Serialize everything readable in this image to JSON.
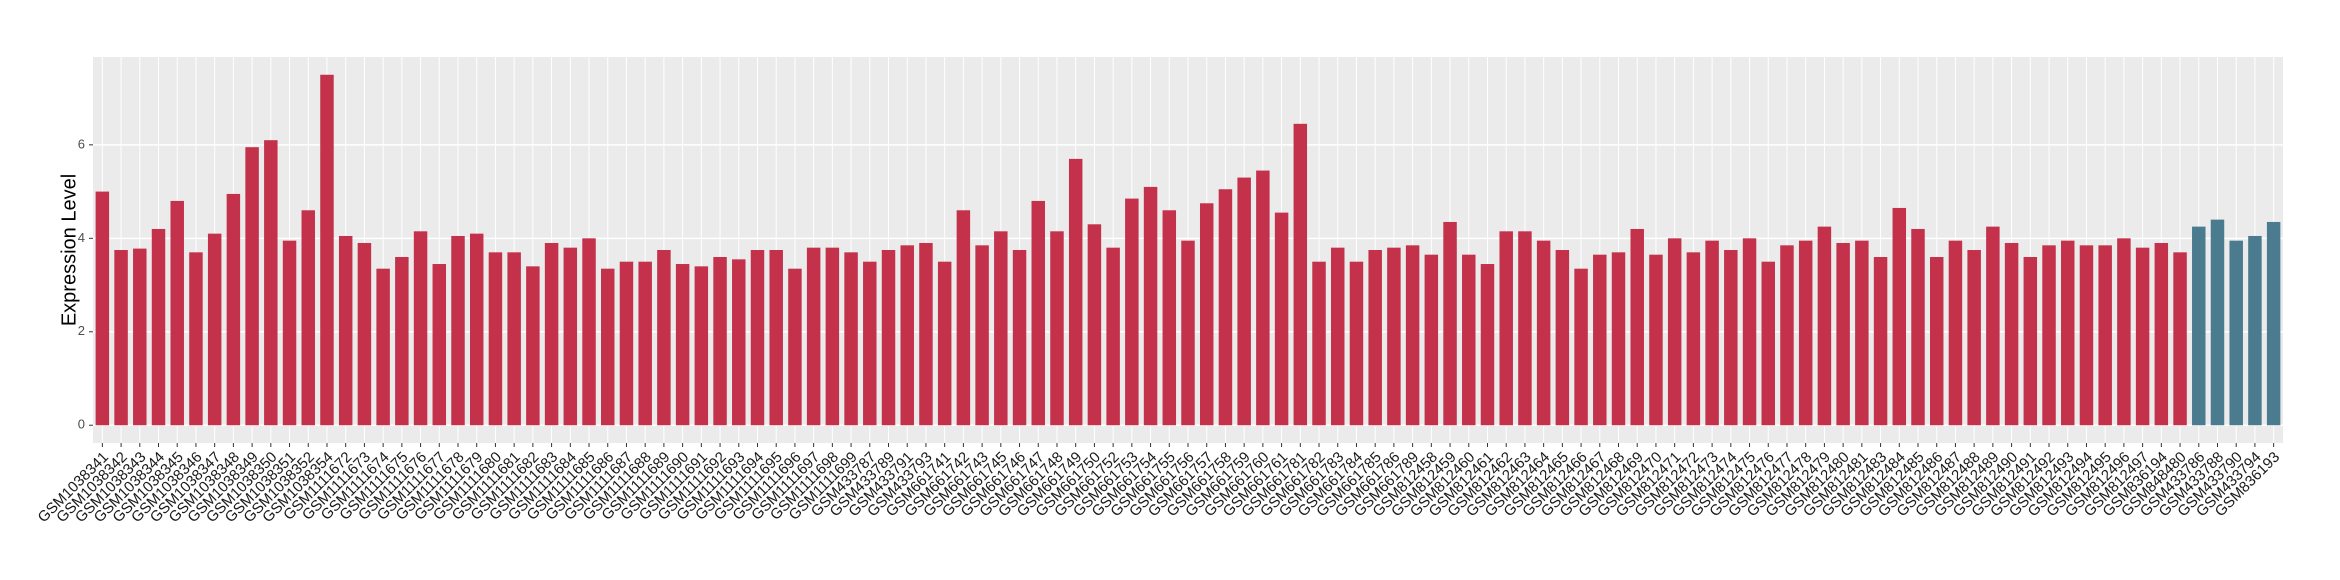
{
  "chart_data": {
    "type": "bar",
    "y_label": "Expression Level",
    "categories": [
      "GSM1038341",
      "GSM1038342",
      "GSM1038343",
      "GSM1038344",
      "GSM1038345",
      "GSM1038346",
      "GSM1038347",
      "GSM1038348",
      "GSM1038349",
      "GSM1038350",
      "GSM1038351",
      "GSM1038352",
      "GSM1038354",
      "GSM1111672",
      "GSM1111673",
      "GSM1111674",
      "GSM1111675",
      "GSM1111676",
      "GSM1111677",
      "GSM1111678",
      "GSM1111679",
      "GSM1111680",
      "GSM1111681",
      "GSM1111682",
      "GSM1111683",
      "GSM1111684",
      "GSM1111685",
      "GSM1111686",
      "GSM1111687",
      "GSM1111688",
      "GSM1111689",
      "GSM1111690",
      "GSM1111691",
      "GSM1111692",
      "GSM1111693",
      "GSM1111694",
      "GSM1111695",
      "GSM1111696",
      "GSM1111697",
      "GSM1111698",
      "GSM1111699",
      "GSM433787",
      "GSM433789",
      "GSM433791",
      "GSM433793",
      "GSM661741",
      "GSM661742",
      "GSM661743",
      "GSM661745",
      "GSM661746",
      "GSM661747",
      "GSM661748",
      "GSM661749",
      "GSM661750",
      "GSM661752",
      "GSM661753",
      "GSM661754",
      "GSM661755",
      "GSM661756",
      "GSM661757",
      "GSM661758",
      "GSM661759",
      "GSM661760",
      "GSM661761",
      "GSM661781",
      "GSM661782",
      "GSM661783",
      "GSM661784",
      "GSM661785",
      "GSM661786",
      "GSM661789",
      "GSM812458",
      "GSM812459",
      "GSM812460",
      "GSM812461",
      "GSM812462",
      "GSM812463",
      "GSM812464",
      "GSM812465",
      "GSM812466",
      "GSM812467",
      "GSM812468",
      "GSM812469",
      "GSM812470",
      "GSM812471",
      "GSM812472",
      "GSM812473",
      "GSM812474",
      "GSM812475",
      "GSM812476",
      "GSM812477",
      "GSM812478",
      "GSM812479",
      "GSM812480",
      "GSM812481",
      "GSM812483",
      "GSM812484",
      "GSM812485",
      "GSM812486",
      "GSM812487",
      "GSM812488",
      "GSM812489",
      "GSM812490",
      "GSM812491",
      "GSM812492",
      "GSM812493",
      "GSM812494",
      "GSM812495",
      "GSM812496",
      "GSM812497",
      "GSM836194",
      "GSM848480",
      "GSM433786",
      "GSM433788",
      "GSM433790",
      "GSM433794",
      "GSM836193"
    ],
    "values": [
      5.0,
      3.75,
      3.78,
      4.2,
      4.8,
      3.7,
      4.1,
      4.95,
      5.95,
      6.1,
      3.95,
      4.6,
      7.5,
      4.05,
      3.9,
      3.35,
      3.6,
      4.15,
      3.45,
      4.05,
      4.1,
      3.7,
      3.7,
      3.4,
      3.9,
      3.8,
      4.0,
      3.35,
      3.5,
      3.5,
      3.75,
      3.45,
      3.4,
      3.6,
      3.55,
      3.75,
      3.75,
      3.35,
      3.8,
      3.8,
      3.7,
      3.5,
      3.75,
      3.85,
      3.9,
      3.5,
      4.6,
      3.85,
      4.15,
      3.75,
      4.8,
      4.15,
      5.7,
      4.3,
      3.8,
      4.85,
      5.1,
      4.6,
      3.95,
      4.75,
      5.05,
      5.3,
      5.45,
      4.55,
      6.45,
      3.5,
      3.8,
      3.5,
      3.75,
      3.8,
      3.85,
      3.65,
      4.35,
      3.65,
      3.45,
      4.15,
      4.15,
      3.95,
      3.75,
      3.35,
      3.65,
      3.7,
      4.2,
      3.65,
      4.0,
      3.7,
      3.95,
      3.75,
      4.0,
      3.5,
      3.85,
      3.95,
      4.25,
      3.9,
      3.95,
      3.6,
      4.65,
      4.2,
      3.6,
      3.95,
      3.75,
      4.25,
      3.9,
      3.6,
      3.85,
      3.95,
      3.85,
      3.85,
      4.0,
      3.8,
      3.9,
      3.7,
      4.25,
      4.4,
      3.95,
      4.05,
      4.35
    ],
    "colors": [
      "#c4314b",
      "#c4314b",
      "#c4314b",
      "#c4314b",
      "#c4314b",
      "#c4314b",
      "#c4314b",
      "#c4314b",
      "#c4314b",
      "#c4314b",
      "#c4314b",
      "#c4314b",
      "#c4314b",
      "#c4314b",
      "#c4314b",
      "#c4314b",
      "#c4314b",
      "#c4314b",
      "#c4314b",
      "#c4314b",
      "#c4314b",
      "#c4314b",
      "#c4314b",
      "#c4314b",
      "#c4314b",
      "#c4314b",
      "#c4314b",
      "#c4314b",
      "#c4314b",
      "#c4314b",
      "#c4314b",
      "#c4314b",
      "#c4314b",
      "#c4314b",
      "#c4314b",
      "#c4314b",
      "#c4314b",
      "#c4314b",
      "#c4314b",
      "#c4314b",
      "#c4314b",
      "#c4314b",
      "#c4314b",
      "#c4314b",
      "#c4314b",
      "#c4314b",
      "#c4314b",
      "#c4314b",
      "#c4314b",
      "#c4314b",
      "#c4314b",
      "#c4314b",
      "#c4314b",
      "#c4314b",
      "#c4314b",
      "#c4314b",
      "#c4314b",
      "#c4314b",
      "#c4314b",
      "#c4314b",
      "#c4314b",
      "#c4314b",
      "#c4314b",
      "#c4314b",
      "#c4314b",
      "#c4314b",
      "#c4314b",
      "#c4314b",
      "#c4314b",
      "#c4314b",
      "#c4314b",
      "#c4314b",
      "#c4314b",
      "#c4314b",
      "#c4314b",
      "#c4314b",
      "#c4314b",
      "#c4314b",
      "#c4314b",
      "#c4314b",
      "#c4314b",
      "#c4314b",
      "#c4314b",
      "#c4314b",
      "#c4314b",
      "#c4314b",
      "#c4314b",
      "#c4314b",
      "#c4314b",
      "#c4314b",
      "#c4314b",
      "#c4314b",
      "#c4314b",
      "#c4314b",
      "#c4314b",
      "#c4314b",
      "#c4314b",
      "#c4314b",
      "#c4314b",
      "#c4314b",
      "#c4314b",
      "#c4314b",
      "#c4314b",
      "#c4314b",
      "#c4314b",
      "#c4314b",
      "#c4314b",
      "#c4314b",
      "#c4314b",
      "#c4314b",
      "#c4314b",
      "#c4314b",
      "#4a7b8e",
      "#4a7b8e",
      "#4a7b8e",
      "#4a7b8e",
      "#4a7b8e"
    ],
    "ylim": [
      -0.38,
      7.88
    ],
    "yticks": [
      0,
      2,
      4,
      6
    ],
    "grid": true
  }
}
